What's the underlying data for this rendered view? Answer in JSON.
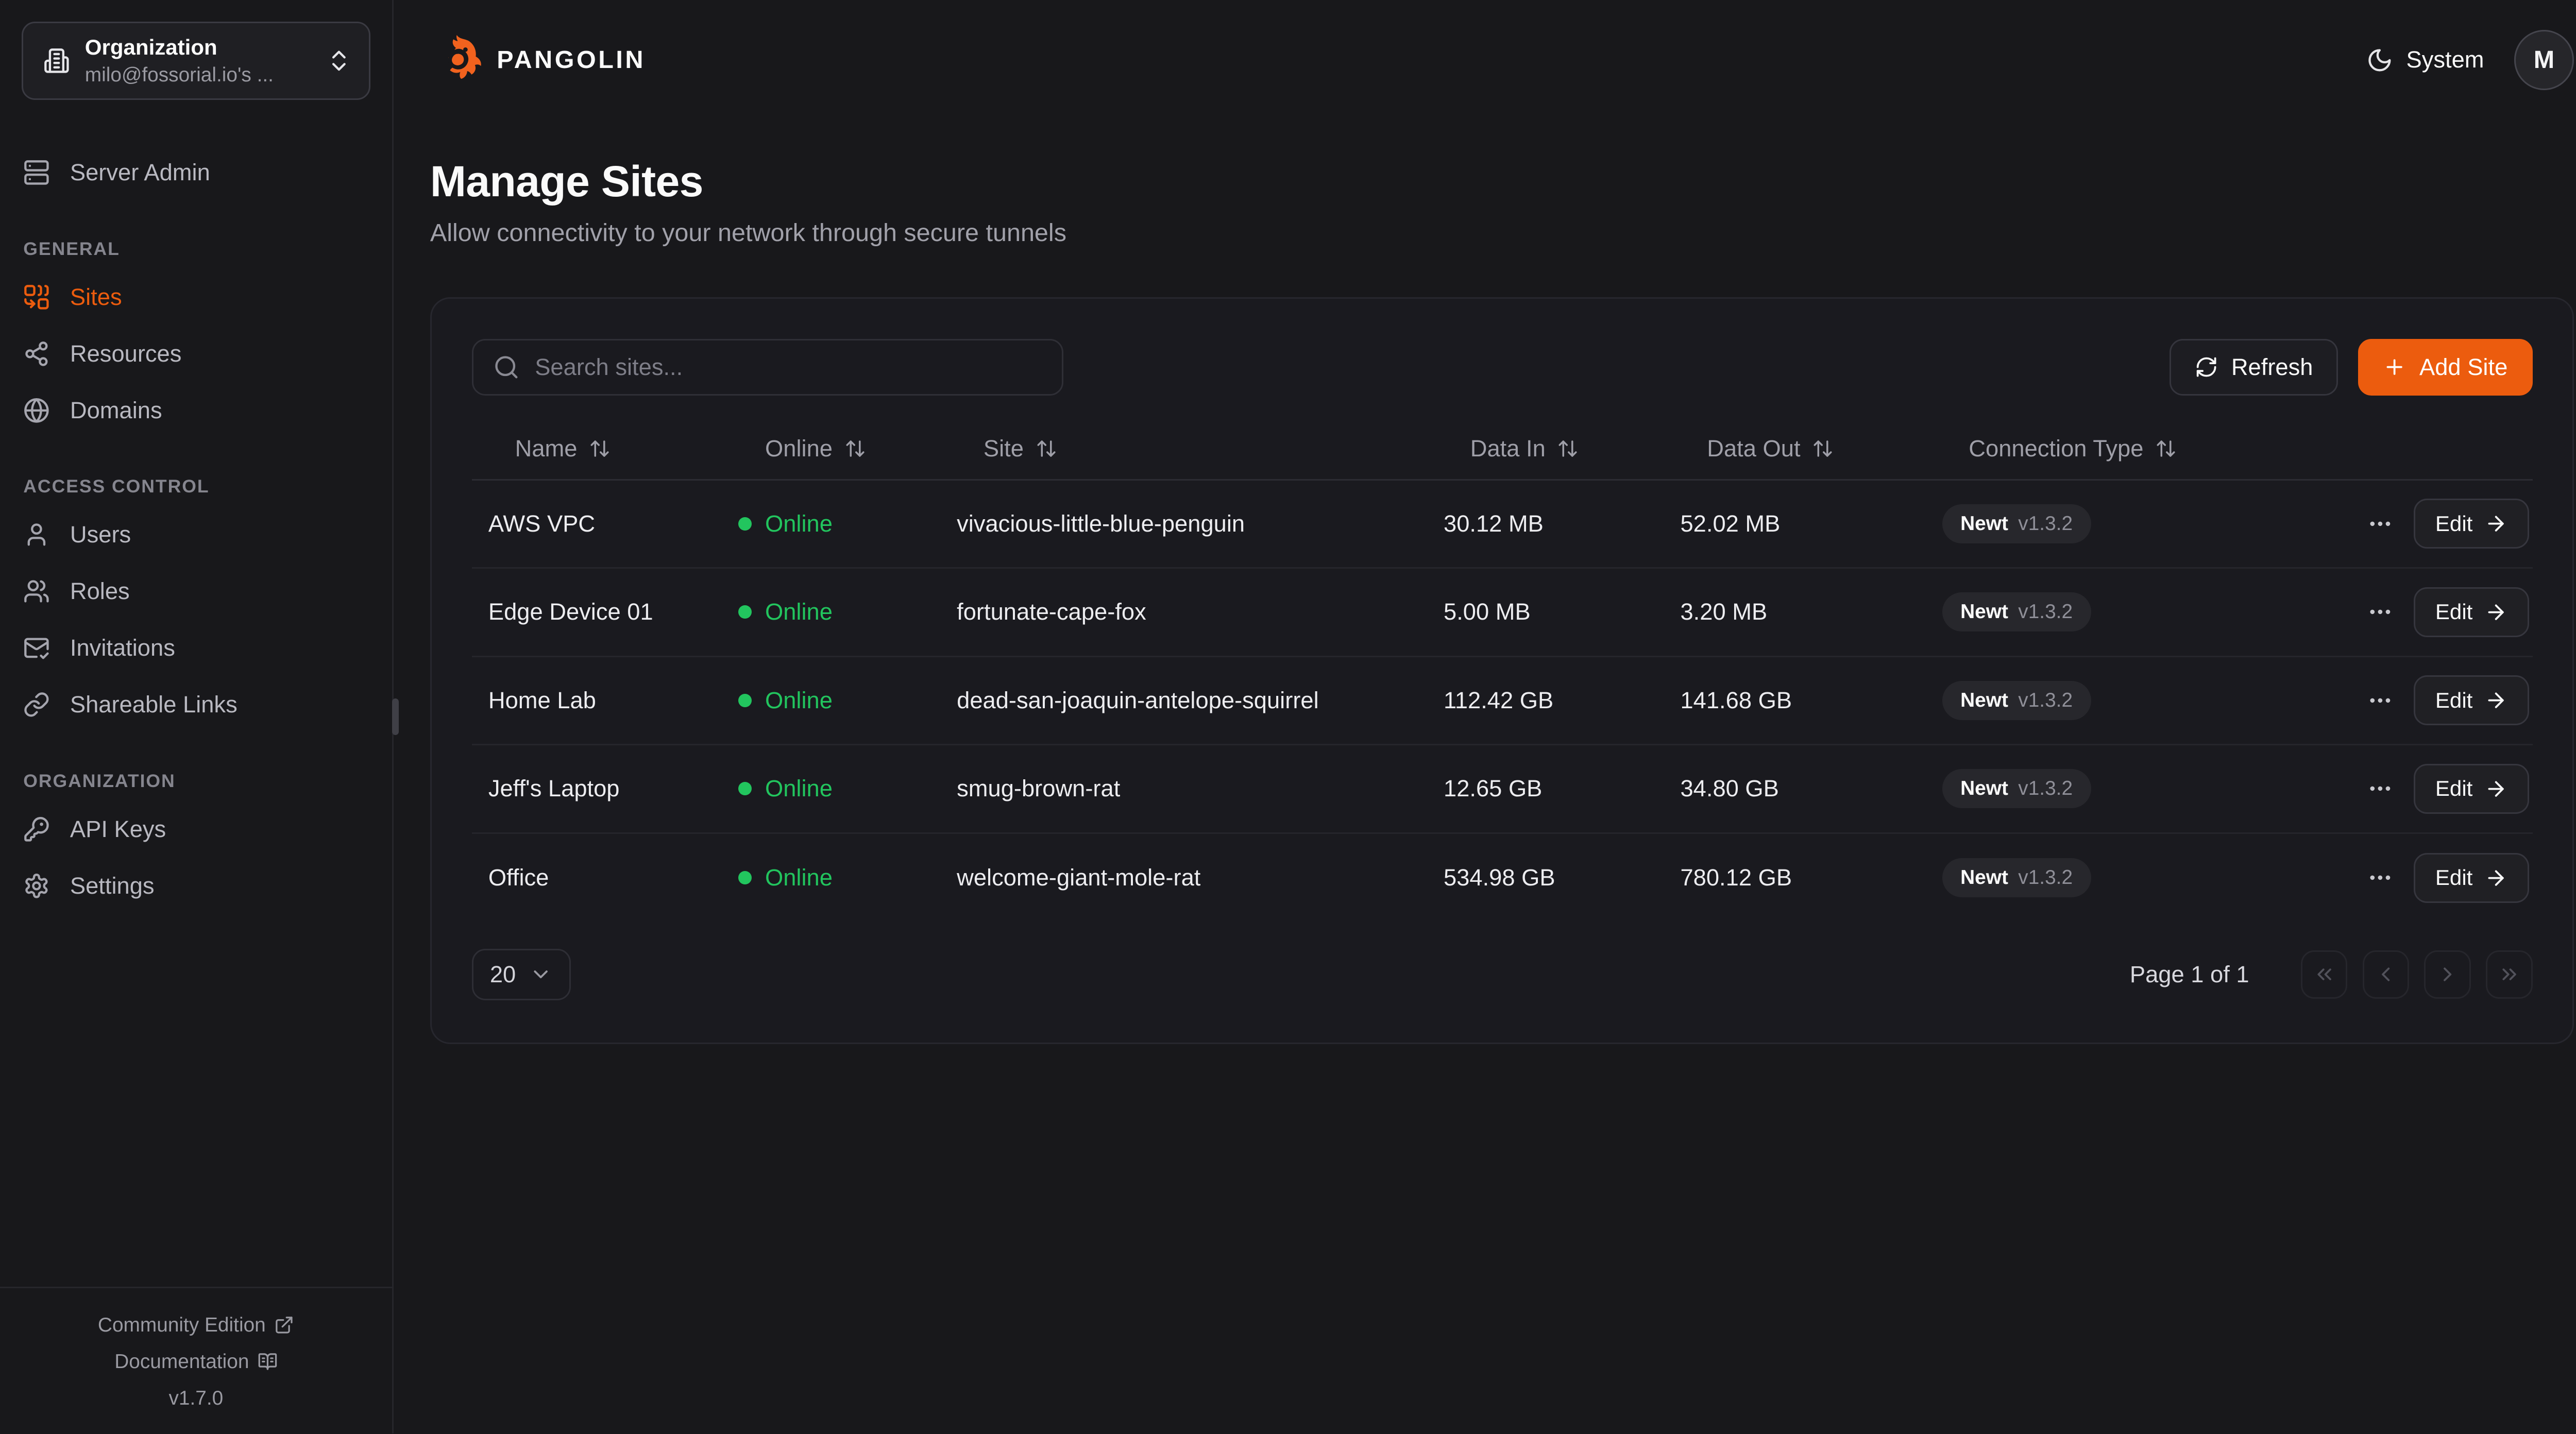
{
  "brand": {
    "name": "PANGOLIN",
    "logo_icon": "pangolin-logo"
  },
  "theme": {
    "accent": "#ec5c0e",
    "online_green": "#22c55e",
    "toggle_label": "System",
    "toggle_icon": "moon"
  },
  "user": {
    "avatar_initial": "M"
  },
  "sidebar": {
    "org_switcher": {
      "label": "Organization",
      "value": "milo@fossorial.io's ...",
      "icon": "building",
      "caret_icon": "chevrons-up-down"
    },
    "top_items": [
      {
        "label": "Server Admin",
        "icon": "server"
      }
    ],
    "sections": [
      {
        "title": "GENERAL",
        "items": [
          {
            "label": "Sites",
            "icon": "combine",
            "active": true
          },
          {
            "label": "Resources",
            "icon": "share-2",
            "active": false
          },
          {
            "label": "Domains",
            "icon": "globe",
            "active": false
          }
        ]
      },
      {
        "title": "ACCESS CONTROL",
        "items": [
          {
            "label": "Users",
            "icon": "user",
            "active": false
          },
          {
            "label": "Roles",
            "icon": "users",
            "active": false
          },
          {
            "label": "Invitations",
            "icon": "mail-check",
            "active": false
          },
          {
            "label": "Shareable Links",
            "icon": "link",
            "active": false
          }
        ]
      },
      {
        "title": "ORGANIZATION",
        "items": [
          {
            "label": "API Keys",
            "icon": "key",
            "active": false
          },
          {
            "label": "Settings",
            "icon": "settings",
            "active": false
          }
        ]
      }
    ],
    "footer": {
      "links": [
        {
          "label": "Community Edition",
          "icon": "external-link"
        },
        {
          "label": "Documentation",
          "icon": "book-open"
        }
      ],
      "version": "v1.7.0"
    }
  },
  "page": {
    "title": "Manage Sites",
    "subtitle": "Allow connectivity to your network through secure tunnels"
  },
  "toolbar": {
    "search_placeholder": "Search sites...",
    "refresh_label": "Refresh",
    "add_label": "Add Site"
  },
  "table": {
    "columns": [
      "Name",
      "Online",
      "Site",
      "Data In",
      "Data Out",
      "Connection Type"
    ],
    "sort_icon": "arrow-up-down",
    "row_action": "Edit",
    "rows": [
      {
        "name": "AWS VPC",
        "online": "Online",
        "site": "vivacious-little-blue-penguin",
        "data_in": "30.12 MB",
        "data_out": "52.02 MB",
        "connection": {
          "type": "Newt",
          "version": "v1.3.2"
        }
      },
      {
        "name": "Edge Device 01",
        "online": "Online",
        "site": "fortunate-cape-fox",
        "data_in": "5.00 MB",
        "data_out": "3.20 MB",
        "connection": {
          "type": "Newt",
          "version": "v1.3.2"
        }
      },
      {
        "name": "Home Lab",
        "online": "Online",
        "site": "dead-san-joaquin-antelope-squirrel",
        "data_in": "112.42 GB",
        "data_out": "141.68 GB",
        "connection": {
          "type": "Newt",
          "version": "v1.3.2"
        }
      },
      {
        "name": "Jeff's Laptop",
        "online": "Online",
        "site": "smug-brown-rat",
        "data_in": "12.65 GB",
        "data_out": "34.80 GB",
        "connection": {
          "type": "Newt",
          "version": "v1.3.2"
        }
      },
      {
        "name": "Office",
        "online": "Online",
        "site": "welcome-giant-mole-rat",
        "data_in": "534.98 GB",
        "data_out": "780.12 GB",
        "connection": {
          "type": "Newt",
          "version": "v1.3.2"
        }
      }
    ]
  },
  "pagination": {
    "page_size": "20",
    "status": "Page 1 of 1",
    "buttons": [
      "chevrons-left",
      "chevron-left",
      "chevron-right",
      "chevrons-right"
    ]
  }
}
